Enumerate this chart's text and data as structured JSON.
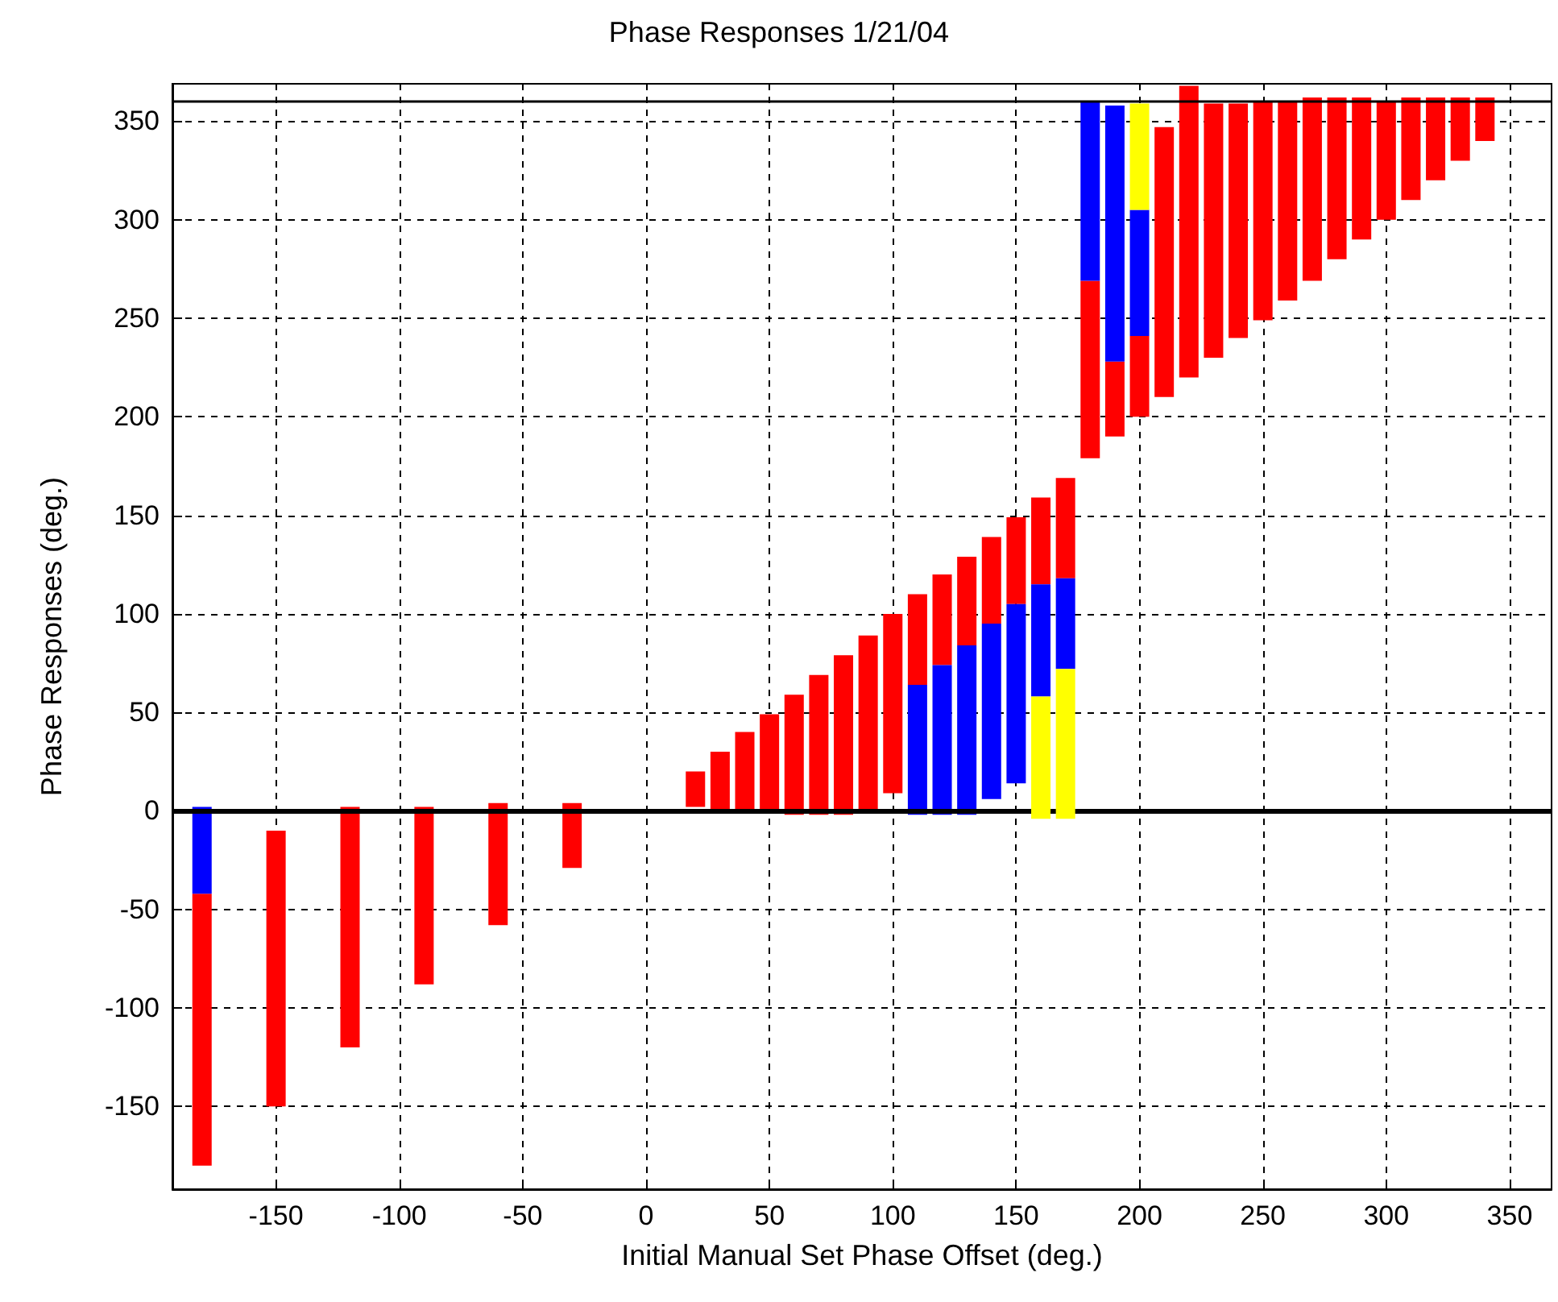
{
  "chart_data": {
    "type": "bar",
    "title": "Phase Responses 1/21/04",
    "xlabel": "Initial Manual Set Phase Offset (deg.)",
    "ylabel": "Phase Responses (deg.)",
    "xlim": [
      -192,
      367
    ],
    "xticks": [
      -150,
      -100,
      -50,
      0,
      50,
      100,
      150,
      200,
      250,
      300,
      350
    ],
    "ylim": [
      -192,
      369
    ],
    "yticks": [
      -150,
      -100,
      -50,
      0,
      50,
      100,
      150,
      200,
      250,
      300,
      350
    ],
    "grid": true,
    "series": [
      {
        "color": "#ff0000",
        "x": [
          -180,
          -150,
          -120,
          -90,
          -60,
          -30,
          20,
          30,
          40,
          50,
          60,
          70,
          80,
          90,
          100,
          110,
          120,
          130,
          140,
          150,
          160,
          170,
          180,
          190,
          200,
          210,
          220,
          230,
          240,
          250,
          260,
          270,
          280,
          290,
          300,
          310,
          320,
          330,
          340
        ],
        "base": [
          -180,
          -150,
          -120,
          -88,
          -58,
          -29,
          2,
          1,
          0,
          -1,
          -2,
          -2,
          -2,
          1,
          9,
          64,
          74,
          84,
          95,
          105,
          115,
          118,
          179,
          190,
          200,
          210,
          220,
          230,
          240,
          249,
          259,
          269,
          280,
          290,
          300,
          310,
          320,
          330,
          340
        ],
        "values": [
          138,
          140,
          122,
          90,
          62,
          33,
          18,
          29,
          40,
          50,
          61,
          71,
          81,
          88,
          91,
          46,
          46,
          45,
          44,
          44,
          44,
          51,
          90,
          38,
          41,
          137,
          148,
          129,
          119,
          111,
          101,
          93,
          82,
          72,
          60,
          52,
          42,
          32,
          22
        ]
      },
      {
        "color": "#0000ff",
        "x": [
          -180,
          110,
          120,
          130,
          140,
          150,
          160,
          170,
          180,
          190,
          200
        ],
        "base": [
          -42,
          -2,
          -2,
          -2,
          6,
          14,
          58,
          72,
          269,
          228,
          241
        ],
        "values": [
          44,
          66,
          76,
          86,
          89,
          91,
          57,
          46,
          91,
          130,
          64
        ]
      },
      {
        "color": "#ffff00",
        "x": [
          160,
          170,
          200
        ],
        "base": [
          -4,
          -4,
          305
        ],
        "values": [
          62,
          76,
          54
        ]
      }
    ],
    "ref_lines": [
      {
        "axis": "y",
        "value": 0,
        "color": "#000000",
        "line_style": "solid"
      },
      {
        "axis": "y",
        "value": 360,
        "color": "#000000",
        "line_style": "solid"
      }
    ]
  }
}
